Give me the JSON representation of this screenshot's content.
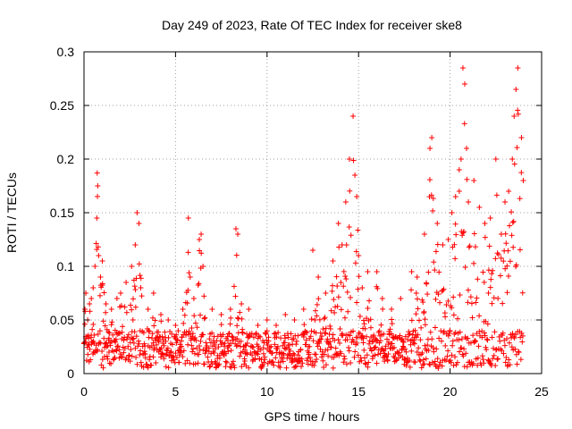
{
  "chart_data": {
    "type": "scatter",
    "title": "Day 249 of 2023, Rate Of TEC Index for receiver ske8",
    "xlabel": "GPS time / hours",
    "ylabel": "ROTI / TECUs",
    "xlim": [
      0,
      25
    ],
    "ylim": [
      0,
      0.3
    ],
    "xticks": [
      0,
      5,
      10,
      15,
      20,
      25
    ],
    "xtick_labels": [
      "0",
      "5",
      "10",
      "15",
      "20",
      "25"
    ],
    "yticks": [
      0,
      0.05,
      0.1,
      0.15,
      0.2,
      0.25,
      0.3
    ],
    "ytick_labels": [
      "0",
      "0.05",
      "0.1",
      "0.15",
      "0.2",
      "0.25",
      "0.3"
    ],
    "grid": true,
    "marker": "+",
    "series": [
      {
        "name": "ROTI",
        "color": "#ff0000",
        "baseline_range_tecu_per_min": [
          0.005,
          0.04
        ],
        "x": [
          0.05,
          0.1,
          0.2,
          0.3,
          0.4,
          0.5,
          0.6,
          0.7,
          0.72,
          0.75,
          0.8,
          0.9,
          1.0,
          1.2,
          1.5,
          1.8,
          2.0,
          2.3,
          2.6,
          2.8,
          2.9,
          3.0,
          3.1,
          3.5,
          3.8,
          4.2,
          4.6,
          5.0,
          5.4,
          5.7,
          5.8,
          6.0,
          6.3,
          6.4,
          6.5,
          7.0,
          7.5,
          8.0,
          8.3,
          8.4,
          8.6,
          9.0,
          9.5,
          10.0,
          10.5,
          11.0,
          11.5,
          12.0,
          12.5,
          12.8,
          13.2,
          13.6,
          13.9,
          14.1,
          14.3,
          14.5,
          14.7,
          14.8,
          14.9,
          15.0,
          15.2,
          15.5,
          16.0,
          16.3,
          16.8,
          17.3,
          17.9,
          18.2,
          18.6,
          18.9,
          19.0,
          19.3,
          19.6,
          19.9,
          20.1,
          20.3,
          20.5,
          20.6,
          20.7,
          20.8,
          20.9,
          21.0,
          21.3,
          21.6,
          21.9,
          22.2,
          22.5,
          22.8,
          23.0,
          23.2,
          23.4,
          23.5,
          23.6,
          23.7,
          23.9,
          24.0
        ],
        "y": [
          0.06,
          0.075,
          0.05,
          0.065,
          0.07,
          0.08,
          0.1,
          0.145,
          0.187,
          0.175,
          0.11,
          0.09,
          0.105,
          0.065,
          0.06,
          0.07,
          0.075,
          0.085,
          0.1,
          0.12,
          0.15,
          0.14,
          0.08,
          0.06,
          0.075,
          0.055,
          0.05,
          0.045,
          0.06,
          0.145,
          0.09,
          0.07,
          0.125,
          0.13,
          0.1,
          0.06,
          0.055,
          0.06,
          0.135,
          0.13,
          0.065,
          0.06,
          0.045,
          0.05,
          0.045,
          0.055,
          0.05,
          0.06,
          0.115,
          0.09,
          0.075,
          0.105,
          0.14,
          0.12,
          0.16,
          0.2,
          0.24,
          0.185,
          0.165,
          0.11,
          0.08,
          0.095,
          0.095,
          0.07,
          0.06,
          0.07,
          0.095,
          0.09,
          0.13,
          0.21,
          0.22,
          0.14,
          0.12,
          0.125,
          0.15,
          0.165,
          0.19,
          0.2,
          0.285,
          0.27,
          0.21,
          0.16,
          0.18,
          0.155,
          0.14,
          0.145,
          0.2,
          0.13,
          0.16,
          0.17,
          0.2,
          0.24,
          0.265,
          0.285,
          0.22,
          0.18
        ]
      }
    ]
  }
}
